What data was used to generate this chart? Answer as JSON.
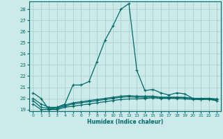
{
  "xlabel": "Humidex (Indice chaleur)",
  "ylabel": "",
  "background_color": "#cceaea",
  "grid_color": "#aacece",
  "line_color": "#006868",
  "xlim": [
    -0.5,
    23.5
  ],
  "ylim": [
    18.85,
    28.7
  ],
  "yticks": [
    19,
    20,
    21,
    22,
    23,
    24,
    25,
    26,
    27,
    28
  ],
  "xticks": [
    0,
    1,
    2,
    3,
    4,
    5,
    6,
    7,
    8,
    9,
    10,
    11,
    12,
    13,
    14,
    15,
    16,
    17,
    18,
    19,
    20,
    21,
    22,
    23
  ],
  "series": [
    [
      20.5,
      20.0,
      19.0,
      19.2,
      19.5,
      21.2,
      21.2,
      21.5,
      23.3,
      25.2,
      26.5,
      28.0,
      28.5,
      22.5,
      20.7,
      20.8,
      20.5,
      20.3,
      20.5,
      20.4,
      20.0,
      19.9,
      20.0,
      19.8
    ],
    [
      19.5,
      19.0,
      19.0,
      19.0,
      19.2,
      19.3,
      19.4,
      19.5,
      19.6,
      19.7,
      19.8,
      19.9,
      19.95,
      19.95,
      20.0,
      20.05,
      20.0,
      20.0,
      20.0,
      19.95,
      19.9,
      19.9,
      19.9,
      19.8
    ],
    [
      19.8,
      19.2,
      19.1,
      19.1,
      19.3,
      19.5,
      19.6,
      19.7,
      19.8,
      19.9,
      20.0,
      20.1,
      20.15,
      20.1,
      20.1,
      20.1,
      20.1,
      20.1,
      20.1,
      20.05,
      20.0,
      20.0,
      20.0,
      19.9
    ],
    [
      20.0,
      19.5,
      19.2,
      19.2,
      19.4,
      19.6,
      19.7,
      19.8,
      19.9,
      20.0,
      20.1,
      20.2,
      20.25,
      20.2,
      20.2,
      20.2,
      20.1,
      20.1,
      20.1,
      20.1,
      20.0,
      20.0,
      20.0,
      19.95
    ]
  ]
}
